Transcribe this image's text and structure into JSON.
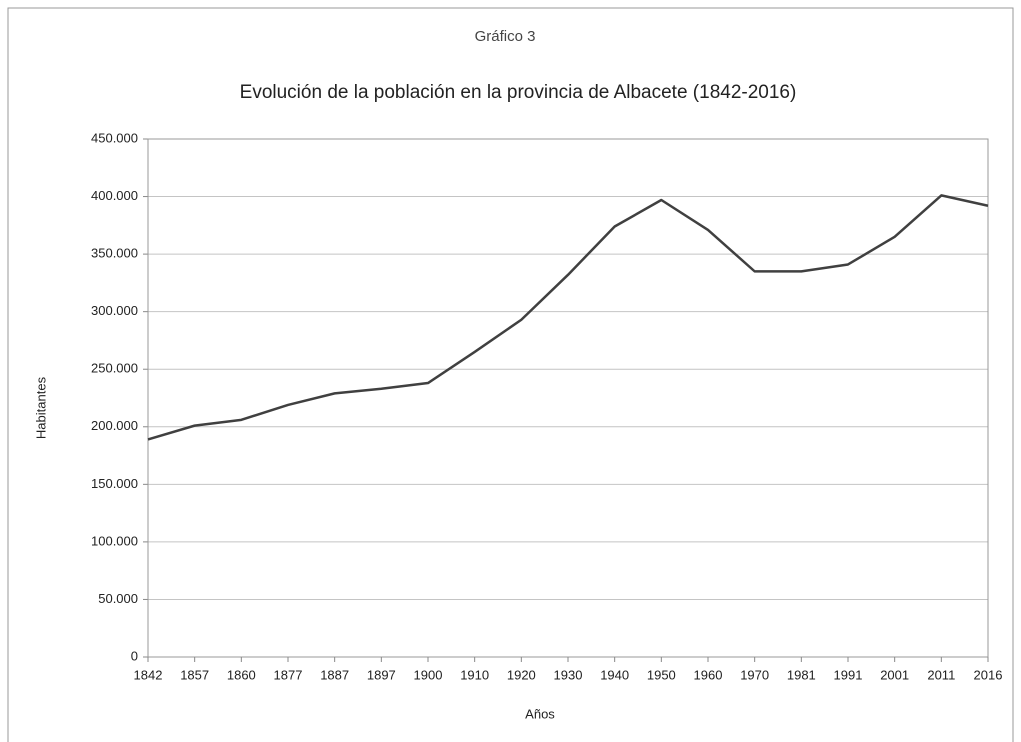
{
  "chart_data": {
    "type": "line",
    "subtitle": "Gráfico 3",
    "title": "Evolución de la población en la provincia de Albacete (1842-2016)",
    "x_label": "Años",
    "y_label": "Habitantes",
    "categories": [
      "1842",
      "1857",
      "1860",
      "1877",
      "1887",
      "1897",
      "1900",
      "1910",
      "1920",
      "1930",
      "1940",
      "1950",
      "1960",
      "1970",
      "1981",
      "1991",
      "2001",
      "2011",
      "2016"
    ],
    "series": [
      {
        "name": "Habitantes",
        "color": "#404040",
        "values": [
          189000,
          201000,
          206000,
          219000,
          229000,
          233000,
          238000,
          265000,
          293000,
          332000,
          374000,
          397000,
          371000,
          335000,
          335000,
          341000,
          365000,
          401000,
          392000
        ]
      }
    ],
    "ylim": [
      0,
      450000
    ],
    "yticks": [
      0,
      {
        "value": 50000,
        "label": "50.000"
      },
      {
        "value": 100000,
        "label": "100.000"
      },
      {
        "value": 150000,
        "label": "150.000"
      },
      {
        "value": 200000,
        "label": "200.000"
      },
      {
        "value": 250000,
        "label": "250.000"
      },
      {
        "value": 300000,
        "label": "300.000"
      },
      {
        "value": 350000,
        "label": "350.000"
      },
      {
        "value": 400000,
        "label": "400.000"
      },
      {
        "value": 450000,
        "label": "450.000"
      }
    ],
    "grid": true,
    "legend": false
  }
}
